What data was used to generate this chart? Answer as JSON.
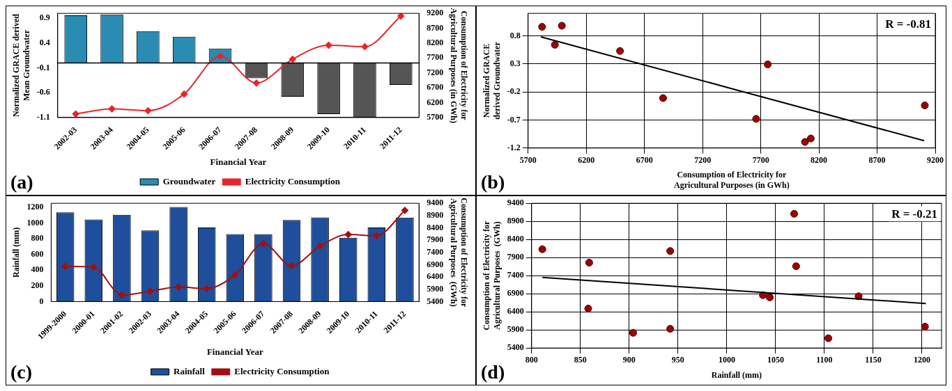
{
  "chart_data": [
    {
      "type": "bar",
      "xlabel": "Financial Year",
      "ylabel": "Normalized GRACE derived Mean Groundwater",
      "y2label": "Consumption of Electricity for Agricultural Purposes (in GWh)",
      "categories": [
        "2002-03",
        "2003-04",
        "2004-05",
        "2005-06",
        "2006-07",
        "2007-08",
        "2008-09",
        "2009-10",
        "2010-11",
        "2011-12"
      ],
      "series": [
        {
          "name": "Groundwater",
          "type": "bar",
          "color": "#2b8cb3",
          "colors": [
            "#2b8cb3",
            "#2b8cb3",
            "#2b8cb3",
            "#2b8cb3",
            "#2b8cb3",
            "#555555",
            "#555555",
            "#555555",
            "#555555",
            "#555555"
          ],
          "values": [
            0.96,
            0.98,
            0.64,
            0.53,
            0.29,
            -0.31,
            -0.68,
            -1.03,
            -1.09,
            -0.44
          ]
        },
        {
          "name": "Electricity Consumption",
          "type": "line",
          "axis": "y2",
          "color": "#e8262a",
          "marker": "diamond",
          "line_style": "solid",
          "values": [
            5820,
            5990,
            5930,
            6490,
            7760,
            6860,
            7660,
            8130,
            8080,
            9110
          ]
        }
      ],
      "ylim": [
        -1.1,
        1.0
      ],
      "yticks": [
        -1.1,
        -0.6,
        -0.1,
        0.4,
        0.9
      ],
      "y2lim": [
        5700,
        9200
      ],
      "y2ticks": [
        5700,
        6200,
        6700,
        7200,
        7700,
        8200,
        8700,
        9200
      ],
      "ref_lines": [
        {
          "axis": "y",
          "value": 0,
          "color": "#000000"
        }
      ],
      "grid": false,
      "legend": "bottom",
      "annotations": [
        "(a)"
      ]
    },
    {
      "type": "scatter",
      "xlabel": "Consumption of Electricity for Agricultural Purposes (in GWh)",
      "ylabel": "Normalized GRACE derived Groundwater",
      "series": [
        {
          "color": "#a00000",
          "marker": "circle",
          "x": [
            5820,
            5990,
            5930,
            6490,
            7760,
            6860,
            7660,
            8130,
            8080,
            9110
          ],
          "values": [
            0.96,
            0.98,
            0.64,
            0.53,
            0.29,
            -0.31,
            -0.68,
            -1.03,
            -1.09,
            -0.44
          ]
        },
        {
          "type": "line",
          "color": "#000000",
          "marker": "none",
          "x": [
            5810,
            9105
          ],
          "values": [
            0.78,
            -1.07
          ]
        }
      ],
      "xlim": [
        5700,
        9200
      ],
      "xticks": [
        5700,
        6200,
        6700,
        7200,
        7700,
        8200,
        8700,
        9200
      ],
      "ylim": [
        -1.2,
        1.2
      ],
      "yticks": [
        -1.2,
        -0.7,
        -0.2,
        0.3,
        0.8
      ],
      "grid": true,
      "legend": false,
      "annotations": [
        "(b)",
        "R = -0.81"
      ]
    },
    {
      "type": "bar",
      "xlabel": "Financial Year",
      "ylabel": "Rainfall (mm)",
      "y2label": "Consumption of Electricity for Agricultural Purposes  (GWh)",
      "categories": [
        "1999-2000",
        "2000-01",
        "2001-02",
        "2002-03",
        "2003-04",
        "2004-05",
        "2005-06",
        "2006-07",
        "2007-08",
        "2008-09",
        "2009-10",
        "2010-11",
        "2011-12"
      ],
      "series": [
        {
          "name": "Rainfall",
          "type": "bar",
          "color": "#1f4e9c",
          "values": [
            1135,
            1044,
            1104,
            904,
            1203,
            942,
            858,
            859,
            1037,
            1071,
            811,
            942,
            1069
          ]
        },
        {
          "name": "Electricity Consumption",
          "type": "line",
          "axis": "y2",
          "color": "#a01010",
          "marker": "diamond",
          "line_style": "solid",
          "values": [
            6830,
            6800,
            5670,
            5820,
            5990,
            5930,
            6490,
            7760,
            6860,
            7660,
            8130,
            8080,
            9110
          ]
        }
      ],
      "ylim": [
        0,
        1250
      ],
      "yticks": [
        0,
        200,
        400,
        600,
        800,
        1000,
        1200
      ],
      "y2lim": [
        5400,
        9400
      ],
      "y2ticks": [
        5400,
        5900,
        6400,
        6900,
        7400,
        7900,
        8400,
        8900,
        9400
      ],
      "grid": false,
      "legend": "bottom",
      "annotations": [
        "(c)"
      ]
    },
    {
      "type": "scatter",
      "xlabel": "Rainfall (mm)",
      "ylabel": "Consumption of Electricity for Agricultural Purposes  (GWh)",
      "series": [
        {
          "color": "#a00000",
          "marker": "circle",
          "x": [
            1135,
            1044,
            1104,
            904,
            1203,
            942,
            858,
            859,
            1037,
            1071,
            811,
            942,
            1069
          ],
          "values": [
            6830,
            6800,
            5670,
            5820,
            5990,
            5930,
            6490,
            7760,
            6860,
            7660,
            8130,
            8080,
            9110
          ]
        },
        {
          "type": "line",
          "color": "#000000",
          "marker": "none",
          "x": [
            811,
            1204
          ],
          "values": [
            7350,
            6630
          ]
        }
      ],
      "xlim": [
        800,
        1220
      ],
      "xticks": [
        800,
        850,
        900,
        950,
        1000,
        1050,
        1100,
        1150,
        1200
      ],
      "ylim": [
        5400,
        9400
      ],
      "yticks": [
        5400,
        5900,
        6400,
        6900,
        7400,
        7900,
        8400,
        8900,
        9400
      ],
      "grid": true,
      "legend": false,
      "annotations": [
        "(d)",
        "R = -0.21"
      ]
    }
  ]
}
